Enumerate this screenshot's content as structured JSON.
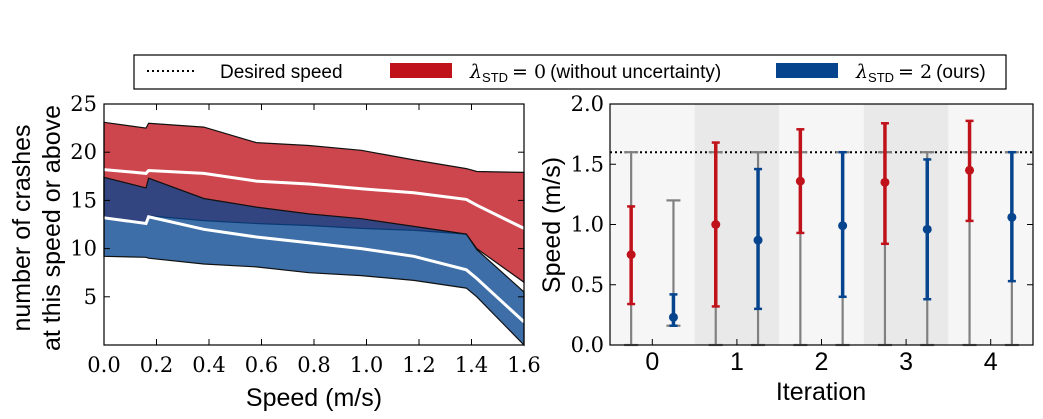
{
  "legend": {
    "entries": [
      {
        "label": "Desired speed",
        "style": "dotted",
        "color": "#000000"
      },
      {
        "label": "λ_STD = 0 (without uncertainty)",
        "math": "λ",
        "sub": "STD",
        "eq": "= 0",
        "tail": "(without uncertainty)",
        "color": "#c0121b"
      },
      {
        "label": "λ_STD = 2 (ours)",
        "math": "λ",
        "sub": "STD",
        "eq": "= 2",
        "tail": "(ours)",
        "color": "#06458e"
      }
    ]
  },
  "chart_data": [
    {
      "type": "area",
      "title": "",
      "xlabel": "Speed (m/s)",
      "ylabel_lines": [
        "number of crashes",
        "at this speed or above"
      ],
      "xlim": [
        0.0,
        1.6
      ],
      "ylim": [
        0,
        25
      ],
      "xticks": [
        "0.0",
        "0.2",
        "0.4",
        "0.6",
        "0.8",
        "1.0",
        "1.2",
        "1.4",
        "1.6"
      ],
      "yticks": [
        "5",
        "10",
        "15",
        "20",
        "25"
      ],
      "series": [
        {
          "name": "λ_STD = 0 (without uncertainty)",
          "color": "#c0121b",
          "x": [
            0.0,
            0.16,
            0.17,
            0.38,
            0.58,
            0.78,
            0.98,
            1.18,
            1.38,
            1.42,
            1.6
          ],
          "upper": [
            23.1,
            22.5,
            23.0,
            22.6,
            21.0,
            20.7,
            20.2,
            19.2,
            18.3,
            18.0,
            17.9
          ],
          "mean": [
            18.2,
            17.8,
            18.1,
            17.8,
            17.0,
            16.7,
            16.2,
            15.8,
            15.1,
            14.5,
            12.1
          ],
          "lower": [
            13.2,
            12.6,
            13.4,
            12.9,
            12.6,
            12.4,
            12.1,
            11.9,
            11.5,
            10.0,
            6.5
          ]
        },
        {
          "name": "λ_STD = 2 (ours)",
          "color": "#06458e",
          "x": [
            0.0,
            0.16,
            0.17,
            0.38,
            0.58,
            0.78,
            0.98,
            1.18,
            1.38,
            1.42,
            1.6
          ],
          "upper": [
            17.4,
            16.3,
            17.3,
            15.2,
            14.3,
            13.6,
            13.1,
            12.3,
            11.5,
            9.9,
            5.5
          ],
          "mean": [
            13.2,
            12.6,
            13.3,
            12.0,
            11.2,
            10.6,
            10.0,
            9.2,
            7.8,
            6.9,
            2.4
          ],
          "lower": [
            9.2,
            9.1,
            9.0,
            8.4,
            8.1,
            7.5,
            7.2,
            6.7,
            5.9,
            5.0,
            0.0
          ]
        }
      ]
    },
    {
      "type": "scatter",
      "title": "",
      "xlabel": "Iteration",
      "ylabel": "Speed (m/s)",
      "xlim": [
        -0.5,
        4.5
      ],
      "ylim": [
        0.0,
        2.0
      ],
      "xticks": [
        "0",
        "1",
        "2",
        "3",
        "4"
      ],
      "yticks": [
        "0.0",
        "0.5",
        "1.0",
        "1.5",
        "2.0"
      ],
      "desired_speed": 1.6,
      "series": [
        {
          "name": "λ_STD = 0 (without uncertainty)",
          "color": "#c0121b",
          "x": [
            -0.25,
            0.75,
            1.75,
            2.75,
            3.75
          ],
          "y": [
            0.75,
            1.0,
            1.36,
            1.35,
            1.45
          ],
          "err_low": [
            0.34,
            0.32,
            0.93,
            0.84,
            1.03
          ],
          "err_high": [
            1.15,
            1.68,
            1.79,
            1.84,
            1.86
          ],
          "range_low": [
            0.0,
            0.0,
            0.0,
            0.0,
            0.0
          ],
          "range_high": [
            1.6,
            1.6,
            1.6,
            1.6,
            1.6
          ]
        },
        {
          "name": "λ_STD = 2 (ours)",
          "color": "#06458e",
          "x": [
            0.25,
            1.25,
            2.25,
            3.25,
            4.25
          ],
          "y": [
            0.23,
            0.87,
            0.99,
            0.96,
            1.06
          ],
          "err_low": [
            0.16,
            0.3,
            0.4,
            0.38,
            0.53
          ],
          "err_high": [
            0.42,
            1.46,
            1.6,
            1.54,
            1.6
          ],
          "range_low": [
            0.16,
            0.0,
            0.0,
            0.0,
            0.0
          ],
          "range_high": [
            1.2,
            1.6,
            1.6,
            1.6,
            1.6
          ]
        }
      ]
    }
  ]
}
